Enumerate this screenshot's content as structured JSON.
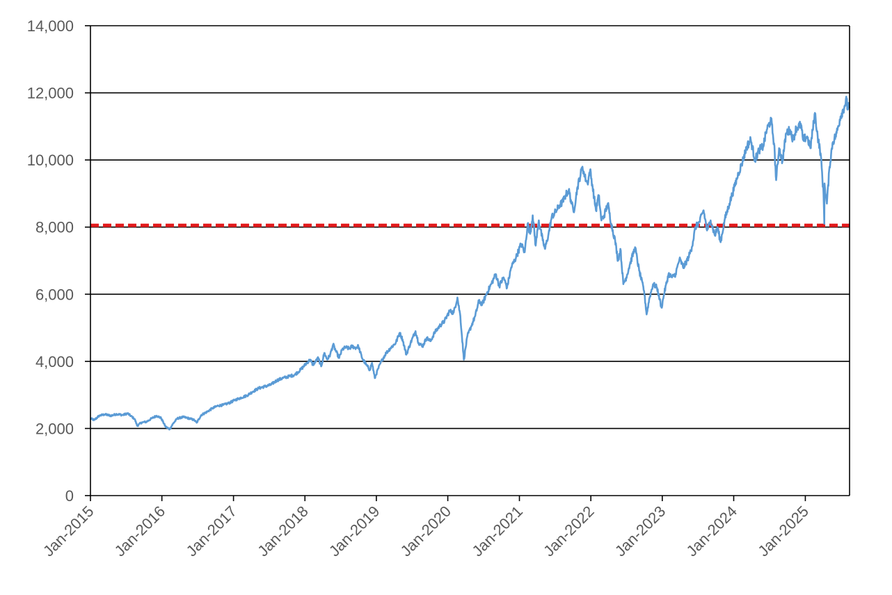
{
  "chart_data": {
    "type": "line",
    "title": "",
    "xlabel": "",
    "ylabel": "",
    "x_axis": {
      "type": "date",
      "range": [
        "2015-01-01",
        "2025-08-15"
      ],
      "tick_labels": [
        "Jan-2015",
        "Jan-2016",
        "Jan-2017",
        "Jan-2018",
        "Jan-2019",
        "Jan-2020",
        "Jan-2021",
        "Jan-2022",
        "Jan-2023",
        "Jan-2024",
        "Jan-2025"
      ],
      "tick_dates": [
        "2015-01-01",
        "2016-01-01",
        "2017-01-01",
        "2018-01-01",
        "2019-01-01",
        "2020-01-01",
        "2021-01-01",
        "2022-01-01",
        "2023-01-01",
        "2024-01-01",
        "2025-01-01"
      ]
    },
    "y_axis": {
      "range": [
        0,
        14000
      ],
      "ticks": [
        0,
        2000,
        4000,
        6000,
        8000,
        10000,
        12000,
        14000
      ],
      "tick_labels": [
        "0",
        "2,000",
        "4,000",
        "6,000",
        "8,000",
        "10,000",
        "12,000",
        "14,000"
      ]
    },
    "grid": "horizontal",
    "reference_line": {
      "value": 8050,
      "style": "dashed",
      "color": "#e31a1c"
    },
    "series": [
      {
        "color": "#5b9bd5",
        "points": [
          [
            "2015-01-01",
            2300
          ],
          [
            "2015-01-20",
            2250
          ],
          [
            "2015-02-15",
            2380
          ],
          [
            "2015-03-15",
            2420
          ],
          [
            "2015-04-15",
            2380
          ],
          [
            "2015-05-15",
            2430
          ],
          [
            "2015-06-15",
            2400
          ],
          [
            "2015-07-10",
            2450
          ],
          [
            "2015-08-15",
            2280
          ],
          [
            "2015-08-28",
            2080
          ],
          [
            "2015-09-20",
            2180
          ],
          [
            "2015-10-15",
            2200
          ],
          [
            "2015-11-10",
            2300
          ],
          [
            "2015-12-05",
            2380
          ],
          [
            "2015-12-28",
            2310
          ],
          [
            "2016-01-20",
            2050
          ],
          [
            "2016-02-10",
            1980
          ],
          [
            "2016-02-28",
            2150
          ],
          [
            "2016-03-20",
            2300
          ],
          [
            "2016-04-20",
            2340
          ],
          [
            "2016-05-20",
            2300
          ],
          [
            "2016-06-15",
            2250
          ],
          [
            "2016-06-27",
            2170
          ],
          [
            "2016-07-20",
            2400
          ],
          [
            "2016-08-20",
            2500
          ],
          [
            "2016-09-15",
            2600
          ],
          [
            "2016-10-15",
            2680
          ],
          [
            "2016-11-10",
            2700
          ],
          [
            "2016-12-10",
            2760
          ],
          [
            "2017-01-10",
            2850
          ],
          [
            "2017-02-10",
            2920
          ],
          [
            "2017-03-10",
            2980
          ],
          [
            "2017-04-10",
            3100
          ],
          [
            "2017-05-10",
            3200
          ],
          [
            "2017-06-10",
            3250
          ],
          [
            "2017-07-10",
            3300
          ],
          [
            "2017-08-10",
            3430
          ],
          [
            "2017-09-10",
            3500
          ],
          [
            "2017-10-10",
            3550
          ],
          [
            "2017-11-10",
            3600
          ],
          [
            "2017-12-10",
            3750
          ],
          [
            "2018-01-10",
            3950
          ],
          [
            "2018-01-28",
            4050
          ],
          [
            "2018-02-10",
            3900
          ],
          [
            "2018-02-25",
            4000
          ],
          [
            "2018-03-10",
            4100
          ],
          [
            "2018-03-25",
            3850
          ],
          [
            "2018-04-10",
            4250
          ],
          [
            "2018-04-25",
            4050
          ],
          [
            "2018-05-10",
            4200
          ],
          [
            "2018-05-25",
            4500
          ],
          [
            "2018-06-10",
            4280
          ],
          [
            "2018-06-25",
            4100
          ],
          [
            "2018-07-10",
            4350
          ],
          [
            "2018-07-28",
            4420
          ],
          [
            "2018-08-15",
            4380
          ],
          [
            "2018-08-31",
            4450
          ],
          [
            "2018-09-15",
            4400
          ],
          [
            "2018-10-01",
            4450
          ],
          [
            "2018-10-20",
            4100
          ],
          [
            "2018-11-10",
            3900
          ],
          [
            "2018-11-28",
            3750
          ],
          [
            "2018-12-10",
            3950
          ],
          [
            "2018-12-24",
            3500
          ],
          [
            "2019-01-10",
            3780
          ],
          [
            "2019-01-31",
            4050
          ],
          [
            "2019-02-20",
            4250
          ],
          [
            "2019-03-15",
            4400
          ],
          [
            "2019-04-10",
            4550
          ],
          [
            "2019-04-30",
            4850
          ],
          [
            "2019-05-15",
            4650
          ],
          [
            "2019-06-03",
            4200
          ],
          [
            "2019-06-25",
            4550
          ],
          [
            "2019-07-20",
            4900
          ],
          [
            "2019-08-05",
            4550
          ],
          [
            "2019-08-25",
            4450
          ],
          [
            "2019-09-15",
            4700
          ],
          [
            "2019-10-05",
            4600
          ],
          [
            "2019-10-25",
            4850
          ],
          [
            "2019-11-20",
            5050
          ],
          [
            "2019-12-15",
            5200
          ],
          [
            "2020-01-10",
            5500
          ],
          [
            "2020-01-31",
            5450
          ],
          [
            "2020-02-19",
            5900
          ],
          [
            "2020-03-05",
            5350
          ],
          [
            "2020-03-23",
            4050
          ],
          [
            "2020-04-10",
            4750
          ],
          [
            "2020-04-30",
            5050
          ],
          [
            "2020-05-20",
            5350
          ],
          [
            "2020-06-08",
            5800
          ],
          [
            "2020-06-25",
            5700
          ],
          [
            "2020-07-20",
            6050
          ],
          [
            "2020-08-10",
            6300
          ],
          [
            "2020-09-02",
            6600
          ],
          [
            "2020-09-20",
            6250
          ],
          [
            "2020-10-12",
            6500
          ],
          [
            "2020-10-30",
            6200
          ],
          [
            "2020-11-20",
            6800
          ],
          [
            "2020-12-15",
            7100
          ],
          [
            "2021-01-10",
            7500
          ],
          [
            "2021-01-28",
            7250
          ],
          [
            "2021-02-12",
            8100
          ],
          [
            "2021-02-25",
            7800
          ],
          [
            "2021-03-10",
            8350
          ],
          [
            "2021-03-25",
            7450
          ],
          [
            "2021-04-10",
            8200
          ],
          [
            "2021-04-30",
            7600
          ],
          [
            "2021-05-12",
            7350
          ],
          [
            "2021-05-30",
            7800
          ],
          [
            "2021-06-15",
            8300
          ],
          [
            "2021-07-10",
            8500
          ],
          [
            "2021-07-25",
            8650
          ],
          [
            "2021-08-10",
            8750
          ],
          [
            "2021-08-25",
            8950
          ],
          [
            "2021-09-10",
            9100
          ],
          [
            "2021-09-25",
            8700
          ],
          [
            "2021-10-05",
            8450
          ],
          [
            "2021-10-25",
            9200
          ],
          [
            "2021-11-19",
            9800
          ],
          [
            "2021-12-01",
            9500
          ],
          [
            "2021-12-15",
            9300
          ],
          [
            "2021-12-28",
            9700
          ],
          [
            "2022-01-10",
            9200
          ],
          [
            "2022-01-27",
            8500
          ],
          [
            "2022-02-10",
            8950
          ],
          [
            "2022-02-24",
            8200
          ],
          [
            "2022-03-10",
            8350
          ],
          [
            "2022-03-29",
            8700
          ],
          [
            "2022-04-15",
            8100
          ],
          [
            "2022-05-05",
            7600
          ],
          [
            "2022-05-20",
            7000
          ],
          [
            "2022-06-01",
            7350
          ],
          [
            "2022-06-16",
            6300
          ],
          [
            "2022-07-01",
            6500
          ],
          [
            "2022-07-20",
            6900
          ],
          [
            "2022-08-15",
            7400
          ],
          [
            "2022-09-05",
            6700
          ],
          [
            "2022-09-30",
            6100
          ],
          [
            "2022-10-13",
            5400
          ],
          [
            "2022-10-28",
            5900
          ],
          [
            "2022-11-15",
            6300
          ],
          [
            "2022-12-05",
            6200
          ],
          [
            "2022-12-28",
            5600
          ],
          [
            "2023-01-10",
            6000
          ],
          [
            "2023-02-02",
            6600
          ],
          [
            "2023-02-20",
            6500
          ],
          [
            "2023-03-10",
            6600
          ],
          [
            "2023-03-30",
            7050
          ],
          [
            "2023-04-20",
            6800
          ],
          [
            "2023-05-15",
            7100
          ],
          [
            "2023-06-01",
            7400
          ],
          [
            "2023-06-20",
            8000
          ],
          [
            "2023-07-10",
            8150
          ],
          [
            "2023-07-31",
            8500
          ],
          [
            "2023-08-18",
            7900
          ],
          [
            "2023-09-05",
            8200
          ],
          [
            "2023-09-27",
            7750
          ],
          [
            "2023-10-10",
            8000
          ],
          [
            "2023-10-26",
            7550
          ],
          [
            "2023-11-15",
            8200
          ],
          [
            "2023-12-10",
            8700
          ],
          [
            "2024-01-05",
            9200
          ],
          [
            "2024-01-25",
            9600
          ],
          [
            "2024-02-15",
            9950
          ],
          [
            "2024-03-08",
            10400
          ],
          [
            "2024-03-28",
            10600
          ],
          [
            "2024-04-19",
            10000
          ],
          [
            "2024-05-10",
            10300
          ],
          [
            "2024-05-30",
            10400
          ],
          [
            "2024-06-18",
            10900
          ],
          [
            "2024-07-10",
            11200
          ],
          [
            "2024-07-25",
            10500
          ],
          [
            "2024-08-05",
            9400
          ],
          [
            "2024-08-20",
            10350
          ],
          [
            "2024-09-06",
            9950
          ],
          [
            "2024-09-25",
            10800
          ],
          [
            "2024-10-15",
            10900
          ],
          [
            "2024-10-31",
            10600
          ],
          [
            "2024-11-15",
            10950
          ],
          [
            "2024-12-10",
            11050
          ],
          [
            "2024-12-20",
            10600
          ],
          [
            "2025-01-10",
            10700
          ],
          [
            "2025-01-27",
            10350
          ],
          [
            "2025-02-19",
            11400
          ],
          [
            "2025-03-05",
            10700
          ],
          [
            "2025-03-20",
            10200
          ],
          [
            "2025-04-04",
            9000
          ],
          [
            "2025-04-08",
            8100
          ],
          [
            "2025-04-09",
            9300
          ],
          [
            "2025-04-21",
            8700
          ],
          [
            "2025-05-05",
            9800
          ],
          [
            "2025-05-20",
            10500
          ],
          [
            "2025-06-10",
            10800
          ],
          [
            "2025-06-30",
            11300
          ],
          [
            "2025-07-20",
            11600
          ],
          [
            "2025-07-31",
            11800
          ],
          [
            "2025-08-05",
            11500
          ],
          [
            "2025-08-10",
            11700
          ],
          [
            "2025-08-15",
            11550
          ]
        ]
      }
    ]
  }
}
